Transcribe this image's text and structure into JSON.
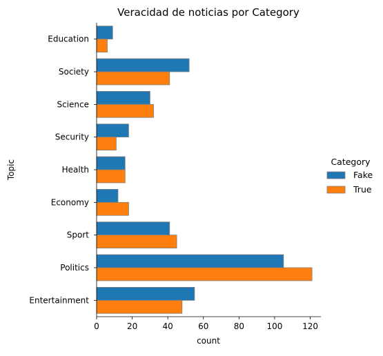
{
  "chart_data": {
    "type": "bar",
    "orientation": "horizontal",
    "title": "Veracidad de noticias por Category",
    "xlabel": "count",
    "ylabel": "Topic",
    "xlim": [
      0,
      126
    ],
    "xticks": [
      0,
      20,
      40,
      60,
      80,
      100,
      120
    ],
    "categories": [
      "Education",
      "Society",
      "Science",
      "Security",
      "Health",
      "Economy",
      "Sport",
      "Politics",
      "Entertainment"
    ],
    "legend": {
      "title": "Category",
      "placement": "right"
    },
    "series": [
      {
        "name": "Fake",
        "color": "#1f77b4",
        "values": [
          9,
          52,
          30,
          18,
          16,
          12,
          41,
          105,
          55
        ]
      },
      {
        "name": "True",
        "color": "#ff7f0e",
        "values": [
          6,
          41,
          32,
          11,
          16,
          18,
          45,
          121,
          48
        ]
      }
    ],
    "grid": false
  }
}
